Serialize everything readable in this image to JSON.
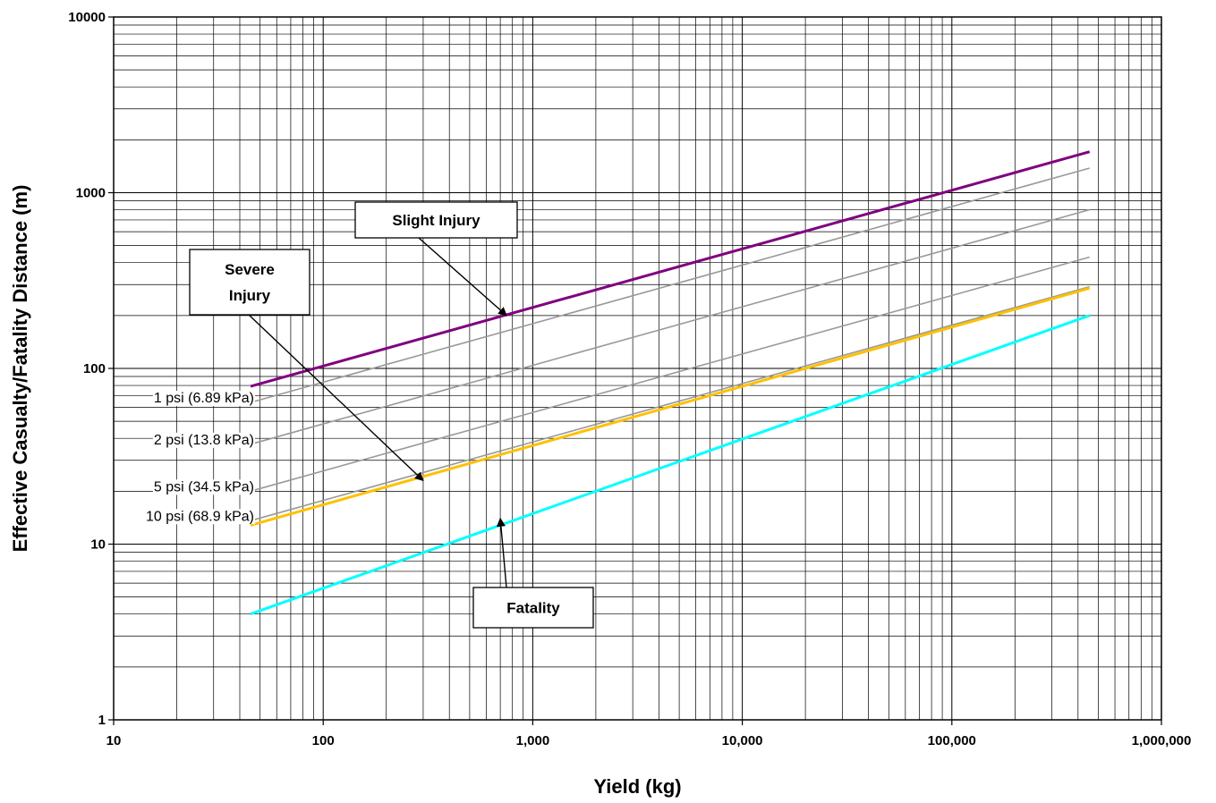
{
  "chart_data": {
    "type": "line",
    "xlabel": "Yield (kg)",
    "ylabel": "Effective Casualty/Fatality Distance (m)",
    "x_scale": "log",
    "y_scale": "log",
    "xlim": [
      10,
      1000000
    ],
    "ylim": [
      1,
      10000
    ],
    "grid": true,
    "x_tick_labels": [
      "10",
      "100",
      "1,000",
      "10,000",
      "100,000",
      "1,000,000"
    ],
    "x_tick_values": [
      10,
      100,
      1000,
      10000,
      100000,
      1000000
    ],
    "y_tick_labels": [
      "1",
      "10",
      "100",
      "1000",
      "10000"
    ],
    "y_tick_values": [
      1,
      10,
      100,
      1000,
      10000
    ],
    "series": [
      {
        "name": "Slight Injury",
        "color": "#800080",
        "x": [
          45,
          454000
        ],
        "y": [
          79,
          1710
        ]
      },
      {
        "name": "1 psi (6.89 kPa)",
        "color": "#999999",
        "x": [
          45,
          454000
        ],
        "y": [
          64,
          1380
        ]
      },
      {
        "name": "2 psi (13.8 kPa)",
        "color": "#999999",
        "x": [
          45,
          454000
        ],
        "y": [
          37,
          800
        ]
      },
      {
        "name": "5 psi (34.5 kPa)",
        "color": "#999999",
        "x": [
          45,
          454000
        ],
        "y": [
          20,
          430
        ]
      },
      {
        "name": "10 psi (68.9 kPa)",
        "color": "#999999",
        "x": [
          45,
          454000
        ],
        "y": [
          13.6,
          292
        ]
      },
      {
        "name": "Severe Injury",
        "color": "#FFC000",
        "x": [
          45,
          454000
        ],
        "y": [
          12.8,
          286
        ]
      },
      {
        "name": "Fatality",
        "color": "#00FFFF",
        "x": [
          45,
          454000
        ],
        "y": [
          4,
          200
        ]
      }
    ],
    "annotations": [
      {
        "lines": [
          "Slight Injury"
        ],
        "target": {
          "x": 750,
          "y": 200
        }
      },
      {
        "lines": [
          "Severe",
          "Injury"
        ],
        "target": {
          "x": 300,
          "y": 23
        }
      },
      {
        "lines": [
          "Fatality"
        ],
        "target": {
          "x": 700,
          "y": 14
        }
      }
    ]
  }
}
